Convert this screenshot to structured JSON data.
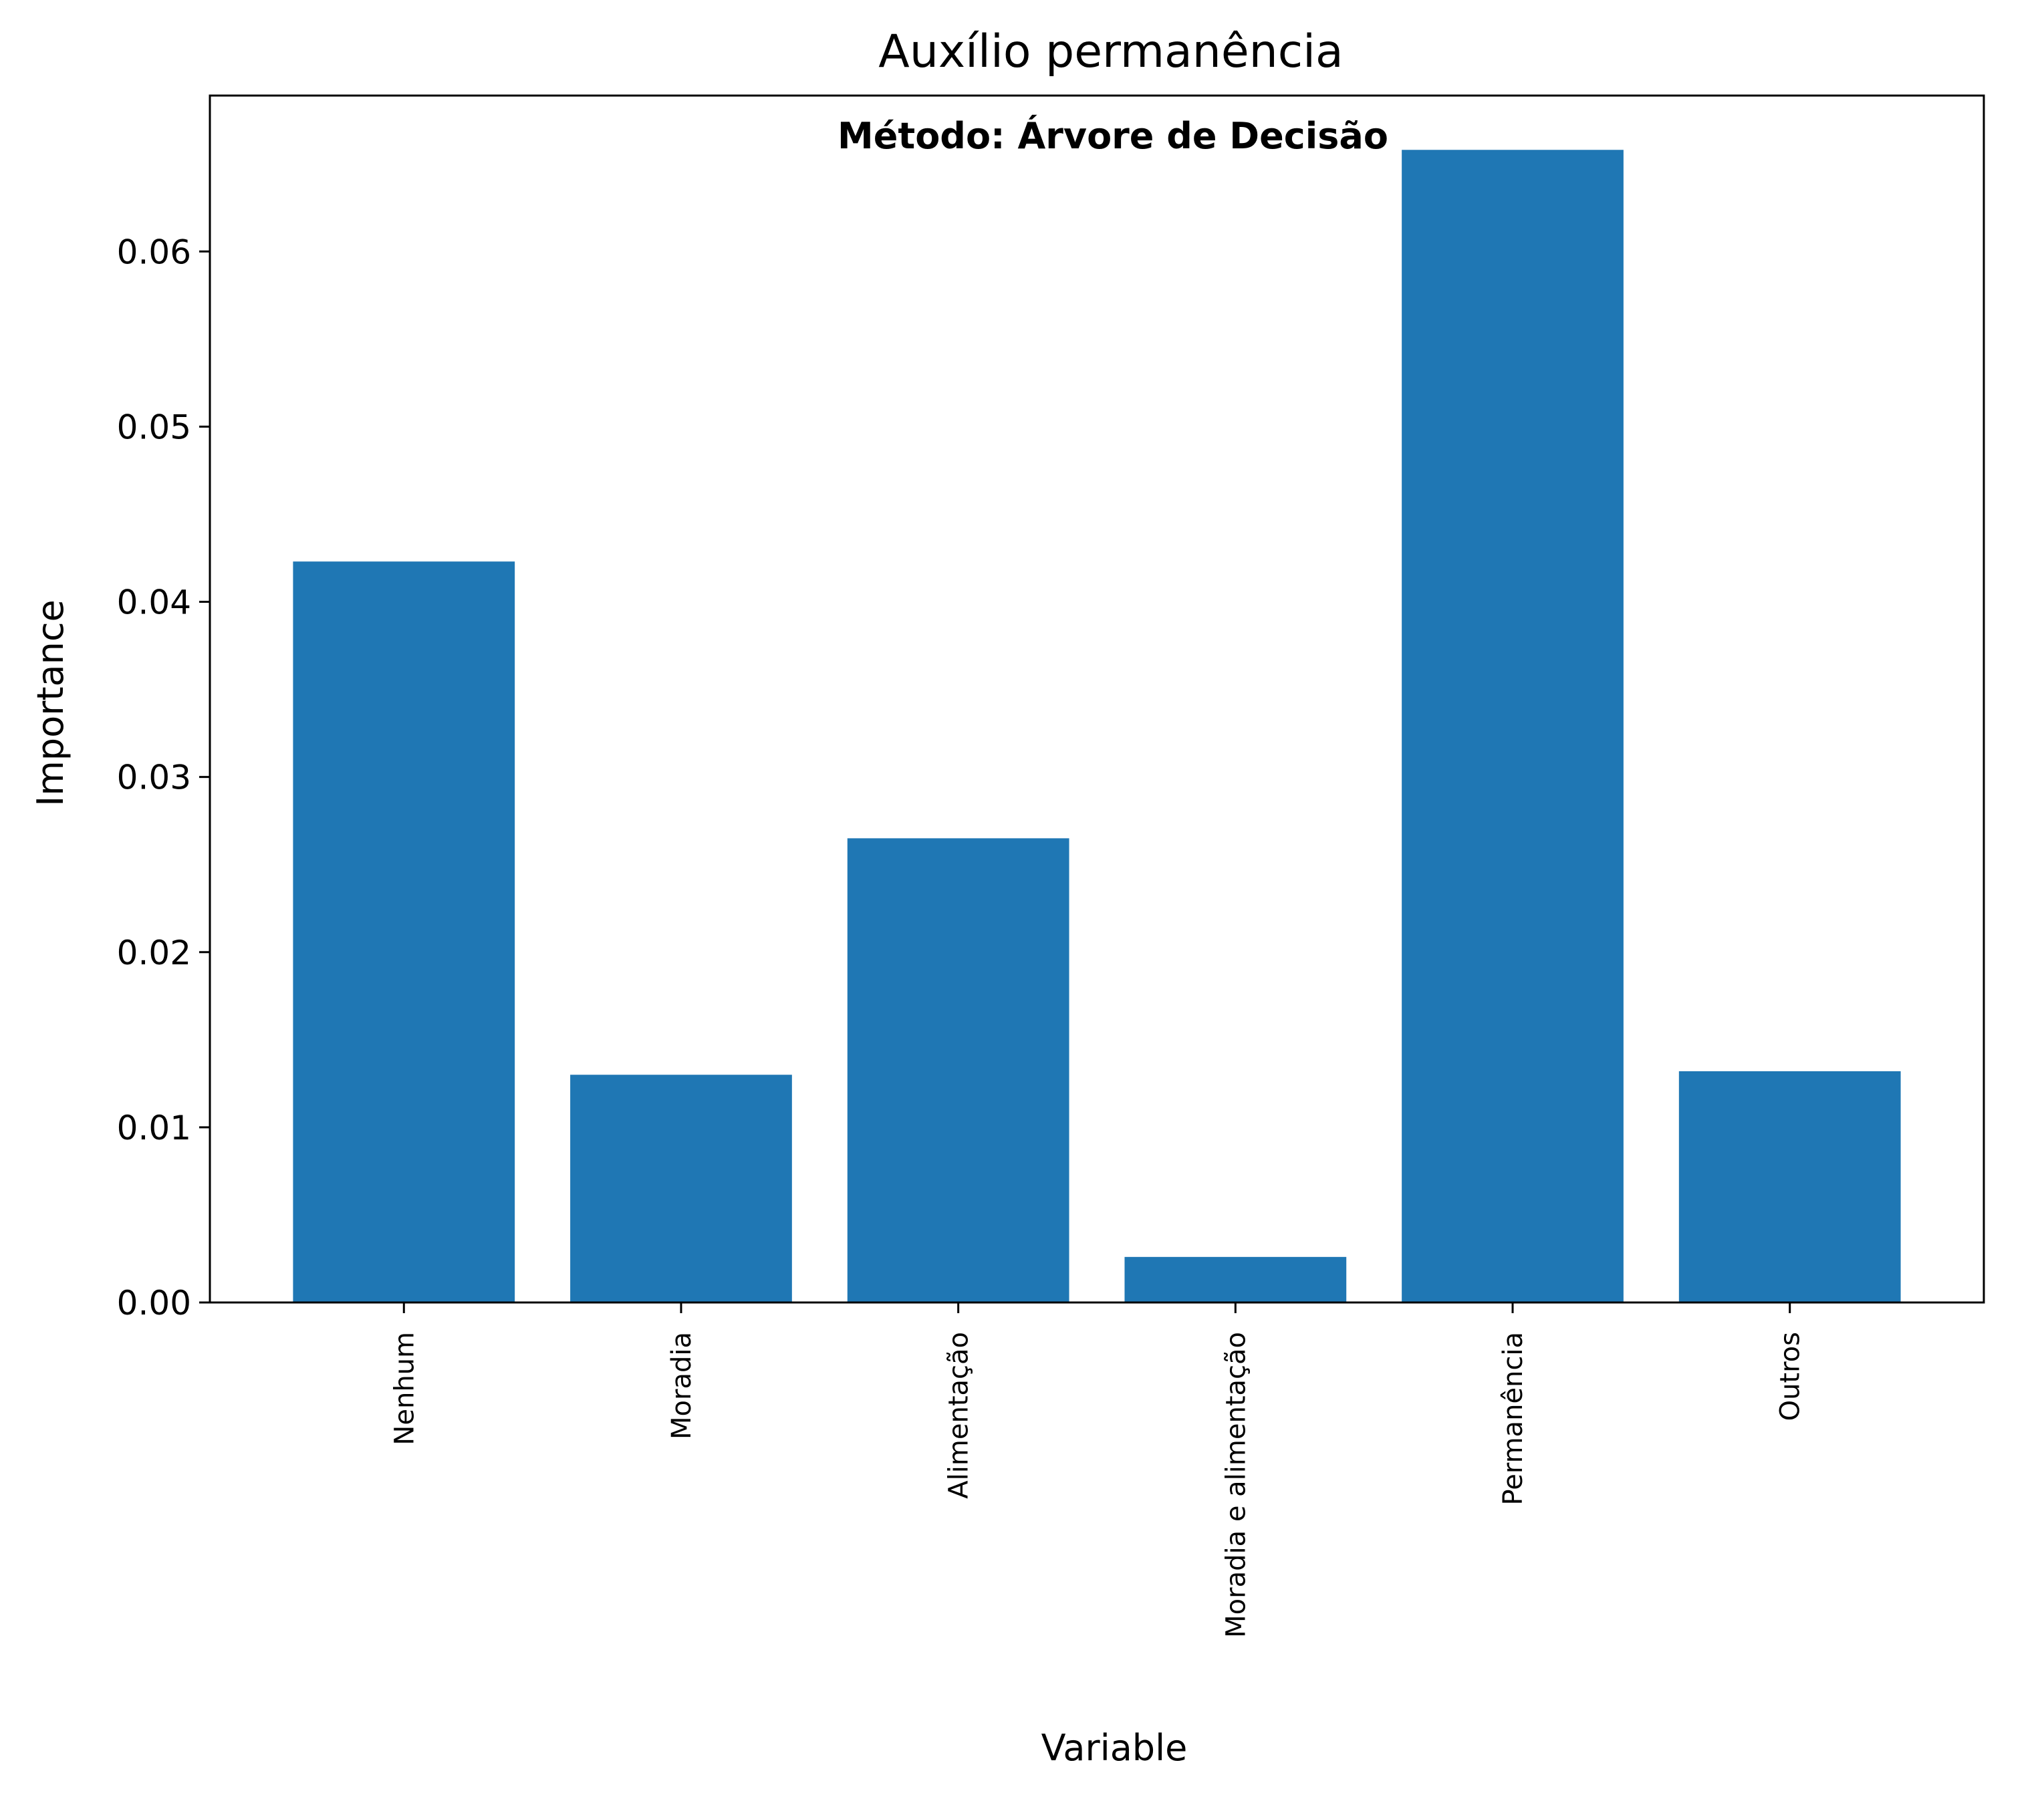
{
  "chart_data": {
    "type": "bar",
    "title": "Auxílio permanência",
    "annotation": "Método: Árvore de Decisão",
    "xlabel": "Variable",
    "ylabel": "Importance",
    "categories": [
      "Nenhum",
      "Moradia",
      "Alimentação",
      "Moradia e alimentação",
      "Permanência",
      "Outros"
    ],
    "values": [
      0.0423,
      0.013,
      0.0265,
      0.0026,
      0.0658,
      0.0132
    ],
    "yticks": [
      "0.00",
      "0.01",
      "0.02",
      "0.03",
      "0.04",
      "0.05",
      "0.06"
    ],
    "ylim": [
      0,
      0.0689
    ],
    "grid": false,
    "bar_color": "#1f77b4"
  }
}
